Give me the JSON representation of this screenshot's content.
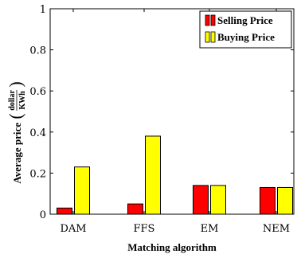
{
  "chart_data": {
    "type": "bar",
    "categories": [
      "DAM",
      "FFS",
      "EM",
      "NEM"
    ],
    "series": [
      {
        "name": "Selling Price",
        "values": [
          0.03,
          0.05,
          0.14,
          0.13
        ],
        "color": "#ff0000"
      },
      {
        "name": "Buying Price",
        "values": [
          0.23,
          0.38,
          0.14,
          0.13
        ],
        "color": "#ffff00"
      }
    ],
    "xlabel": "Matching algorithm",
    "ylabel": "Average price",
    "ylabel_unit_numerator": "dollar",
    "ylabel_unit_denominator": "KWh",
    "ylim": [
      0,
      1
    ],
    "yticks": [
      "0",
      "0.2",
      "0.4",
      "0.6",
      "0.8",
      "1"
    ],
    "grid": false,
    "legend_position": "top-right"
  }
}
